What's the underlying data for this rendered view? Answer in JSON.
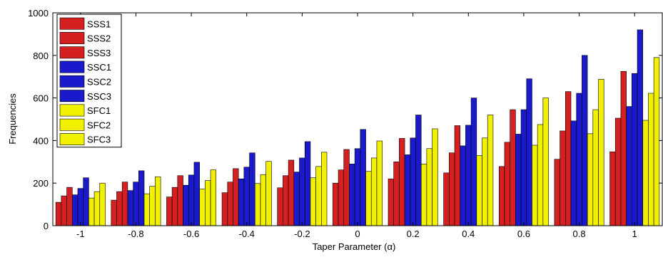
{
  "chart_data": {
    "type": "bar",
    "xlabel": "Taper Parameter (α)",
    "ylabel": "Frequencies",
    "ylim": [
      0,
      1000
    ],
    "yticks": [
      0,
      200,
      400,
      600,
      800,
      1000
    ],
    "categories": [
      "-1",
      "-0.8",
      "-0.6",
      "-0.4",
      "-0.2",
      "0",
      "0.2",
      "0.4",
      "0.6",
      "0.8",
      "1"
    ],
    "grid": false,
    "legend_position": "top-left",
    "series": [
      {
        "name": "SSS1",
        "color": "#d42020",
        "values": [
          110,
          120,
          135,
          155,
          178,
          200,
          220,
          248,
          278,
          312,
          347
        ]
      },
      {
        "name": "SSS2",
        "color": "#d42020",
        "values": [
          140,
          160,
          180,
          205,
          235,
          262,
          300,
          342,
          392,
          445,
          505
        ]
      },
      {
        "name": "SSS3",
        "color": "#d42020",
        "values": [
          180,
          205,
          235,
          268,
          308,
          358,
          410,
          470,
          545,
          630,
          725
        ]
      },
      {
        "name": "SSC1",
        "color": "#1a1acc",
        "values": [
          145,
          165,
          190,
          220,
          252,
          290,
          333,
          375,
          430,
          492,
          560
        ]
      },
      {
        "name": "SSC2",
        "color": "#1a1acc",
        "values": [
          175,
          205,
          238,
          275,
          318,
          362,
          412,
          472,
          545,
          622,
          715
        ]
      },
      {
        "name": "SSC3",
        "color": "#1a1acc",
        "values": [
          225,
          258,
          298,
          342,
          395,
          452,
          520,
          600,
          690,
          800,
          920
        ]
      },
      {
        "name": "SFC1",
        "color": "#f0f000",
        "values": [
          130,
          150,
          172,
          198,
          225,
          255,
          290,
          330,
          378,
          432,
          495
        ]
      },
      {
        "name": "SFC2",
        "color": "#f0f000",
        "values": [
          160,
          185,
          212,
          240,
          278,
          318,
          362,
          412,
          475,
          545,
          622
        ]
      },
      {
        "name": "SFC3",
        "color": "#f0f000",
        "values": [
          200,
          230,
          262,
          302,
          345,
          398,
          455,
          520,
          600,
          688,
          790
        ]
      }
    ]
  }
}
